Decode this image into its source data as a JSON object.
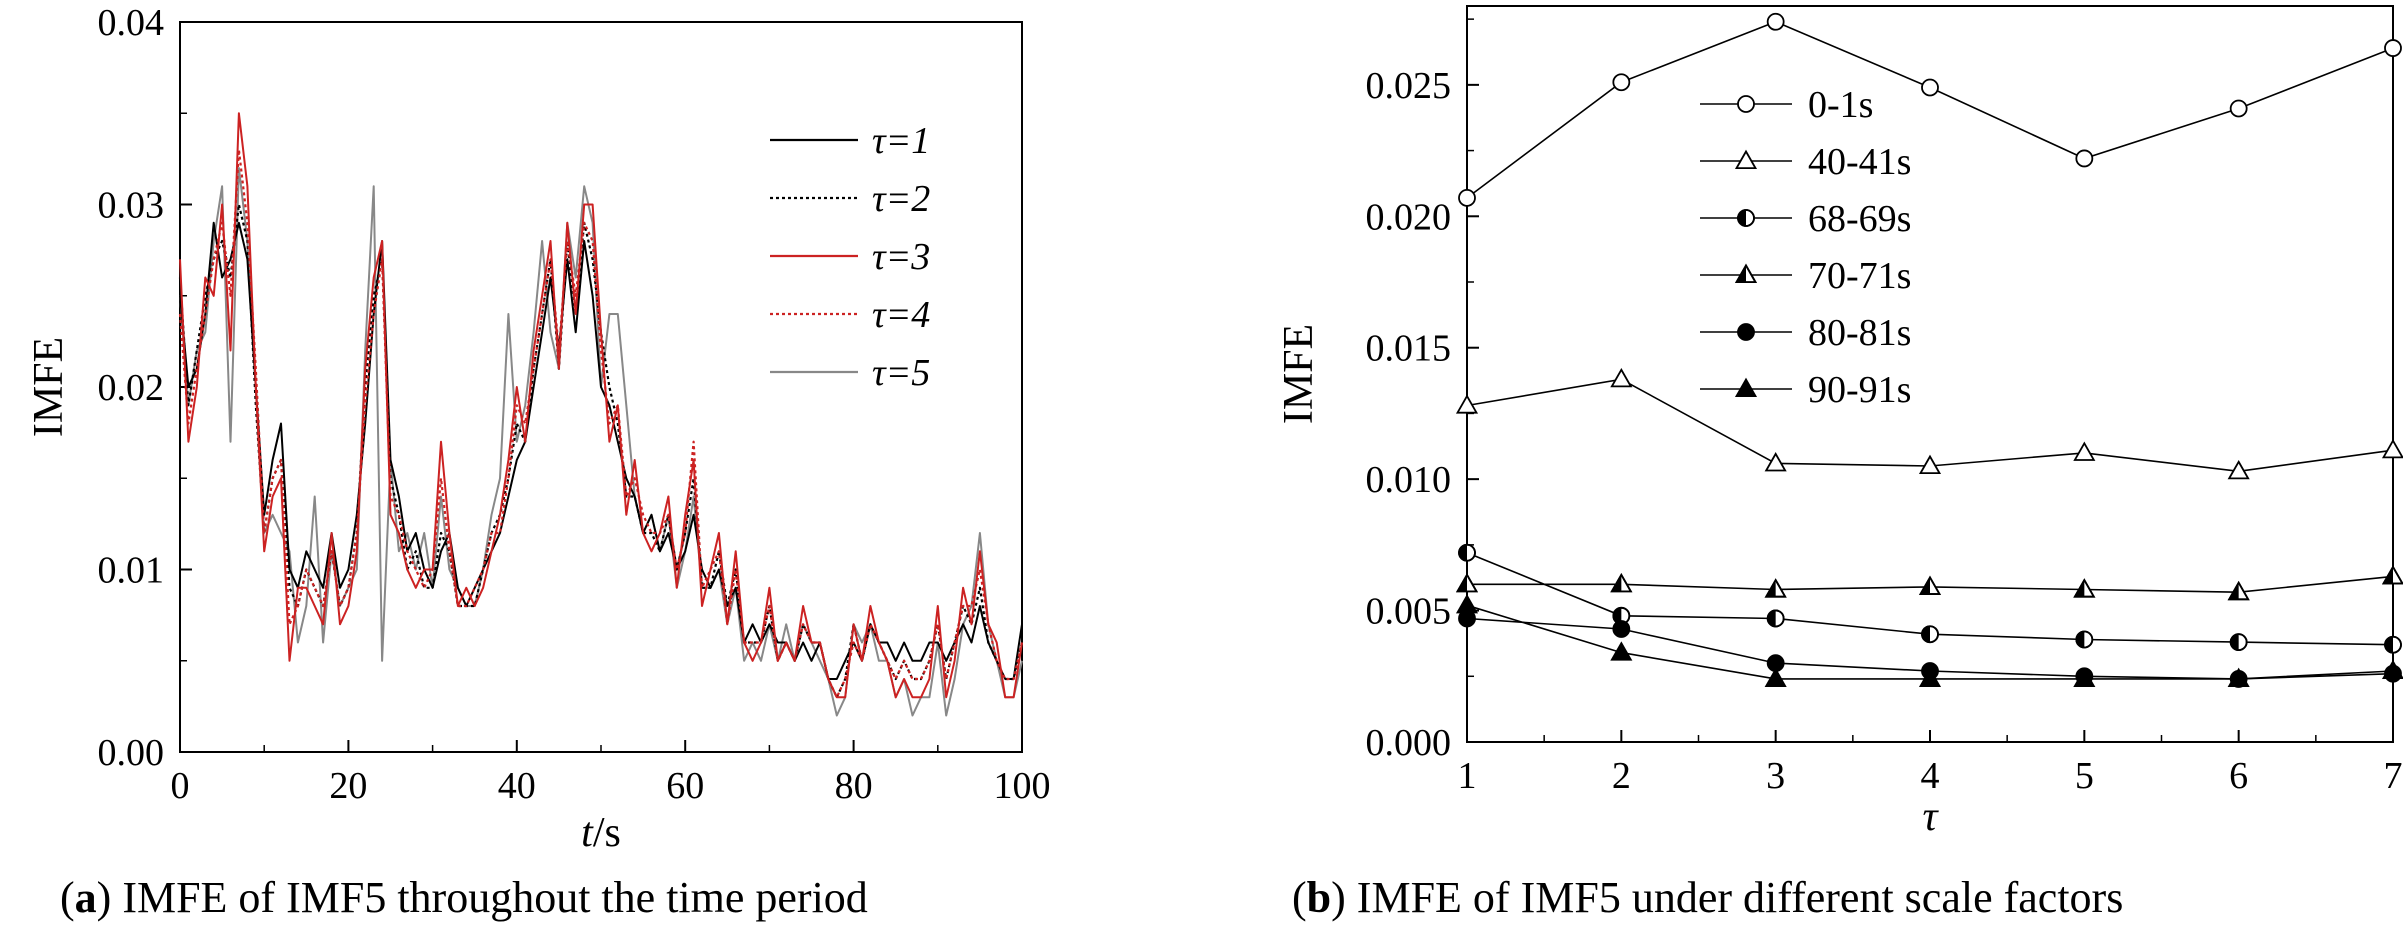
{
  "chart_data": [
    {
      "type": "line",
      "panel": "a",
      "caption_letter": "a",
      "caption_text": "IMFE of IMF5 throughout the time period",
      "xlabel_italic": "t",
      "xlabel_unit": "/s",
      "ylabel": "IMFE",
      "xlim": [
        0,
        100
      ],
      "ylim": [
        0,
        0.04
      ],
      "xticks": [
        "0",
        "20",
        "40",
        "60",
        "80",
        "100"
      ],
      "yticks": [
        "0.00",
        "0.01",
        "0.02",
        "0.03",
        "0.04"
      ],
      "legend_position": "top-right",
      "x": [
        0,
        1,
        2,
        3,
        4,
        5,
        6,
        7,
        8,
        9,
        10,
        11,
        12,
        13,
        14,
        15,
        16,
        17,
        18,
        19,
        20,
        21,
        22,
        23,
        24,
        25,
        26,
        27,
        28,
        29,
        30,
        31,
        32,
        33,
        34,
        35,
        36,
        37,
        38,
        39,
        40,
        41,
        42,
        43,
        44,
        45,
        46,
        47,
        48,
        49,
        50,
        51,
        52,
        53,
        54,
        55,
        56,
        57,
        58,
        59,
        60,
        61,
        62,
        63,
        64,
        65,
        66,
        67,
        68,
        69,
        70,
        71,
        72,
        73,
        74,
        75,
        76,
        77,
        78,
        79,
        80,
        81,
        82,
        83,
        84,
        85,
        86,
        87,
        88,
        89,
        90,
        91,
        92,
        93,
        94,
        95,
        96,
        97,
        98,
        99,
        100
      ],
      "series": [
        {
          "name": "τ=1",
          "color": "#000000",
          "dash": "solid",
          "values": [
            0.025,
            0.02,
            0.021,
            0.024,
            0.029,
            0.026,
            0.027,
            0.029,
            0.027,
            0.02,
            0.013,
            0.016,
            0.018,
            0.01,
            0.009,
            0.011,
            0.01,
            0.009,
            0.012,
            0.009,
            0.01,
            0.013,
            0.018,
            0.024,
            0.028,
            0.016,
            0.014,
            0.011,
            0.012,
            0.01,
            0.009,
            0.011,
            0.012,
            0.009,
            0.008,
            0.009,
            0.01,
            0.011,
            0.012,
            0.014,
            0.016,
            0.017,
            0.02,
            0.023,
            0.026,
            0.022,
            0.027,
            0.023,
            0.028,
            0.025,
            0.02,
            0.019,
            0.017,
            0.015,
            0.014,
            0.012,
            0.013,
            0.011,
            0.012,
            0.01,
            0.011,
            0.013,
            0.01,
            0.009,
            0.01,
            0.008,
            0.009,
            0.006,
            0.007,
            0.006,
            0.007,
            0.006,
            0.006,
            0.005,
            0.006,
            0.005,
            0.006,
            0.004,
            0.004,
            0.005,
            0.006,
            0.005,
            0.007,
            0.006,
            0.006,
            0.005,
            0.006,
            0.005,
            0.005,
            0.006,
            0.006,
            0.005,
            0.006,
            0.007,
            0.006,
            0.008,
            0.006,
            0.005,
            0.004,
            0.004,
            0.007
          ]
        },
        {
          "name": "τ=2",
          "color": "#000000",
          "dash": "dotted",
          "values": [
            0.026,
            0.019,
            0.022,
            0.025,
            0.027,
            0.028,
            0.026,
            0.03,
            0.028,
            0.019,
            0.012,
            0.015,
            0.016,
            0.009,
            0.008,
            0.01,
            0.009,
            0.008,
            0.011,
            0.008,
            0.009,
            0.012,
            0.02,
            0.025,
            0.027,
            0.015,
            0.013,
            0.01,
            0.011,
            0.009,
            0.009,
            0.012,
            0.011,
            0.008,
            0.008,
            0.008,
            0.01,
            0.012,
            0.013,
            0.015,
            0.018,
            0.017,
            0.021,
            0.024,
            0.027,
            0.021,
            0.028,
            0.024,
            0.029,
            0.027,
            0.023,
            0.02,
            0.018,
            0.014,
            0.014,
            0.012,
            0.012,
            0.011,
            0.013,
            0.01,
            0.012,
            0.015,
            0.009,
            0.009,
            0.011,
            0.008,
            0.01,
            0.006,
            0.006,
            0.006,
            0.008,
            0.005,
            0.006,
            0.005,
            0.007,
            0.006,
            0.006,
            0.004,
            0.003,
            0.004,
            0.007,
            0.005,
            0.007,
            0.006,
            0.005,
            0.004,
            0.005,
            0.004,
            0.004,
            0.005,
            0.007,
            0.004,
            0.006,
            0.008,
            0.007,
            0.009,
            0.006,
            0.005,
            0.004,
            0.004,
            0.006
          ]
        },
        {
          "name": "τ=3",
          "color": "#cc2222",
          "dash": "solid",
          "values": [
            0.027,
            0.017,
            0.02,
            0.026,
            0.025,
            0.03,
            0.022,
            0.035,
            0.031,
            0.02,
            0.011,
            0.014,
            0.015,
            0.005,
            0.009,
            0.009,
            0.008,
            0.007,
            0.012,
            0.007,
            0.008,
            0.011,
            0.021,
            0.026,
            0.028,
            0.013,
            0.012,
            0.01,
            0.009,
            0.01,
            0.01,
            0.017,
            0.012,
            0.008,
            0.009,
            0.008,
            0.009,
            0.011,
            0.013,
            0.016,
            0.02,
            0.017,
            0.022,
            0.025,
            0.028,
            0.021,
            0.029,
            0.024,
            0.03,
            0.03,
            0.023,
            0.017,
            0.019,
            0.013,
            0.016,
            0.012,
            0.011,
            0.012,
            0.014,
            0.009,
            0.013,
            0.016,
            0.008,
            0.01,
            0.012,
            0.007,
            0.011,
            0.006,
            0.005,
            0.006,
            0.009,
            0.005,
            0.006,
            0.005,
            0.008,
            0.006,
            0.006,
            0.004,
            0.003,
            0.003,
            0.007,
            0.005,
            0.008,
            0.006,
            0.005,
            0.003,
            0.004,
            0.003,
            0.003,
            0.004,
            0.008,
            0.003,
            0.005,
            0.009,
            0.007,
            0.011,
            0.007,
            0.006,
            0.003,
            0.003,
            0.006
          ]
        },
        {
          "name": "τ=4",
          "color": "#cc2222",
          "dash": "dotted",
          "values": [
            0.024,
            0.018,
            0.021,
            0.024,
            0.027,
            0.029,
            0.025,
            0.033,
            0.029,
            0.021,
            0.012,
            0.015,
            0.016,
            0.007,
            0.008,
            0.01,
            0.009,
            0.008,
            0.011,
            0.008,
            0.009,
            0.012,
            0.019,
            0.024,
            0.027,
            0.014,
            0.013,
            0.011,
            0.01,
            0.009,
            0.01,
            0.015,
            0.011,
            0.008,
            0.008,
            0.009,
            0.01,
            0.012,
            0.012,
            0.015,
            0.019,
            0.018,
            0.021,
            0.024,
            0.027,
            0.022,
            0.028,
            0.025,
            0.029,
            0.028,
            0.022,
            0.018,
            0.019,
            0.014,
            0.015,
            0.013,
            0.012,
            0.012,
            0.013,
            0.01,
            0.012,
            0.017,
            0.009,
            0.01,
            0.011,
            0.007,
            0.01,
            0.006,
            0.006,
            0.006,
            0.008,
            0.005,
            0.006,
            0.005,
            0.007,
            0.006,
            0.006,
            0.004,
            0.003,
            0.004,
            0.006,
            0.005,
            0.007,
            0.006,
            0.005,
            0.004,
            0.005,
            0.004,
            0.004,
            0.005,
            0.007,
            0.004,
            0.006,
            0.008,
            0.008,
            0.01,
            0.007,
            0.005,
            0.004,
            0.004,
            0.006
          ]
        },
        {
          "name": "τ=5",
          "color": "#888888",
          "dash": "solid",
          "values": [
            0.025,
            0.019,
            0.022,
            0.023,
            0.028,
            0.031,
            0.017,
            0.032,
            0.028,
            0.02,
            0.012,
            0.013,
            0.012,
            0.011,
            0.006,
            0.008,
            0.014,
            0.006,
            0.011,
            0.008,
            0.009,
            0.01,
            0.022,
            0.031,
            0.005,
            0.016,
            0.011,
            0.012,
            0.01,
            0.012,
            0.009,
            0.014,
            0.01,
            0.009,
            0.008,
            0.008,
            0.01,
            0.013,
            0.015,
            0.024,
            0.017,
            0.019,
            0.023,
            0.028,
            0.023,
            0.021,
            0.029,
            0.026,
            0.031,
            0.029,
            0.02,
            0.024,
            0.024,
            0.019,
            0.014,
            0.012,
            0.013,
            0.011,
            0.013,
            0.009,
            0.011,
            0.014,
            0.009,
            0.009,
            0.01,
            0.007,
            0.009,
            0.005,
            0.006,
            0.005,
            0.007,
            0.005,
            0.007,
            0.005,
            0.007,
            0.006,
            0.005,
            0.004,
            0.002,
            0.003,
            0.007,
            0.006,
            0.007,
            0.005,
            0.005,
            0.003,
            0.004,
            0.002,
            0.003,
            0.003,
            0.006,
            0.002,
            0.004,
            0.007,
            0.008,
            0.012,
            0.007,
            0.005,
            0.003,
            0.003,
            0.005
          ]
        }
      ]
    },
    {
      "type": "line",
      "panel": "b",
      "caption_letter": "b",
      "caption_text": "IMFE of IMF5 under different scale factors",
      "xlabel": "τ",
      "ylabel": "IMFE",
      "xlim": [
        1,
        7
      ],
      "ylim": [
        0,
        0.028
      ],
      "xticks": [
        "1",
        "2",
        "3",
        "4",
        "5",
        "6",
        "7"
      ],
      "yticks": [
        "0.000",
        "0.005",
        "0.010",
        "0.015",
        "0.020",
        "0.025"
      ],
      "legend_position": "upper-middle",
      "x": [
        1,
        2,
        3,
        4,
        5,
        6,
        7
      ],
      "series": [
        {
          "name": "0-1s",
          "marker": "circle-open",
          "values": [
            0.0207,
            0.0251,
            0.0274,
            0.0249,
            0.0222,
            0.0241,
            0.0264
          ]
        },
        {
          "name": "40-41s",
          "marker": "triangle-open",
          "values": [
            0.0128,
            0.0138,
            0.0106,
            0.0105,
            0.011,
            0.0103,
            0.0111
          ]
        },
        {
          "name": "68-69s",
          "marker": "circle-half",
          "values": [
            0.0072,
            0.0048,
            0.0047,
            0.0041,
            0.0039,
            0.0038,
            0.0037
          ]
        },
        {
          "name": "70-71s",
          "marker": "triangle-half",
          "values": [
            0.006,
            0.006,
            0.0058,
            0.0059,
            0.0058,
            0.0057,
            0.0063
          ]
        },
        {
          "name": "80-81s",
          "marker": "circle-filled",
          "values": [
            0.0047,
            0.0043,
            0.003,
            0.0027,
            0.0025,
            0.0024,
            0.0026
          ]
        },
        {
          "name": "90-91s",
          "marker": "triangle-filled",
          "values": [
            0.0052,
            0.0034,
            0.0024,
            0.0024,
            0.0024,
            0.0024,
            0.0027
          ]
        }
      ]
    }
  ]
}
